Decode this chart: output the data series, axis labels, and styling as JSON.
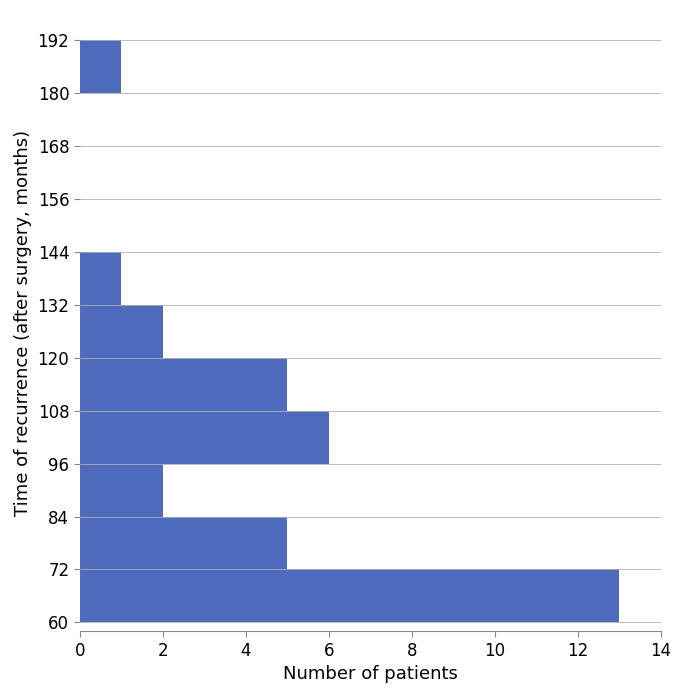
{
  "bins": [
    60,
    72,
    84,
    96,
    108,
    120,
    132,
    144,
    156,
    168,
    180,
    192
  ],
  "counts": [
    13,
    5,
    2,
    6,
    5,
    2,
    1,
    0,
    0,
    0,
    1
  ],
  "bar_color": "#4f6bbd",
  "xlabel": "Number of patients",
  "ylabel": "Time of recurrence (after surgery, months)",
  "xlim": [
    0,
    14
  ],
  "ylim": [
    58,
    198
  ],
  "yticks": [
    60,
    72,
    84,
    96,
    108,
    120,
    132,
    144,
    156,
    168,
    180,
    192
  ],
  "xticks": [
    0,
    2,
    4,
    6,
    8,
    10,
    12,
    14
  ],
  "xlabel_fontsize": 13,
  "ylabel_fontsize": 13,
  "tick_fontsize": 12,
  "background_color": "#ffffff",
  "grid_color": "#b0b0b0",
  "spine_color": "#888888"
}
